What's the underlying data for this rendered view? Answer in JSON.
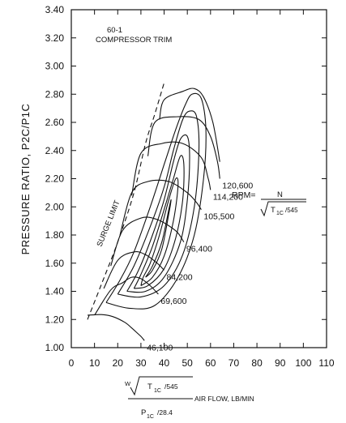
{
  "chart_data": {
    "type": "line",
    "title": "",
    "annotations": {
      "map_id": "60-1",
      "trim": "COMPRESSOR TRIM",
      "surge": "SURGE LIMIT"
    },
    "ylabel": "PRESSURE RATIO, P2C/P1C",
    "xlabel": {
      "numerator_w": "W",
      "numerator_t": "T",
      "numerator_t_sub": "1C",
      "numerator_t_div": "/545",
      "denominator_p": "P",
      "denominator_p_sub": "1C",
      "denominator_p_div": "/28.4",
      "suffix": "AIR FLOW, LB/MIN"
    },
    "rpm_formula": {
      "prefix": "RPM=",
      "numerator": "N",
      "den_t": "T",
      "den_sub": "1C",
      "den_div": "/545"
    },
    "xlim": [
      0,
      110
    ],
    "ylim": [
      1.0,
      3.4
    ],
    "x_ticks": [
      0,
      10,
      20,
      30,
      40,
      50,
      60,
      70,
      80,
      90,
      100,
      110
    ],
    "x_tick_labels": [
      "0",
      "10",
      "20",
      "30",
      "40",
      "50",
      "60",
      "70",
      "80",
      "90",
      "100",
      "110"
    ],
    "y_ticks": [
      1.0,
      1.2,
      1.4,
      1.6,
      1.8,
      2.0,
      2.2,
      2.4,
      2.6,
      2.8,
      3.0,
      3.2,
      3.4
    ],
    "y_tick_labels": [
      "1.00",
      "1.20",
      "1.40",
      "1.60",
      "1.80",
      "2.00",
      "2.20",
      "2.40",
      "2.60",
      "2.80",
      "3.00",
      "3.20",
      "3.40"
    ],
    "grid": false,
    "surge_line": [
      [
        7,
        1.2
      ],
      [
        13,
        1.45
      ],
      [
        20,
        1.75
      ],
      [
        27,
        2.1
      ],
      [
        32,
        2.45
      ],
      [
        36,
        2.66
      ],
      [
        40,
        2.88
      ]
    ],
    "speed_lines": [
      {
        "label": "46,100",
        "points": [
          [
            7,
            1.23
          ],
          [
            13,
            1.235
          ],
          [
            18,
            1.22
          ],
          [
            23,
            1.18
          ],
          [
            26,
            1.14
          ],
          [
            28,
            1.11
          ],
          [
            30,
            1.08
          ],
          [
            31.5,
            1.05
          ]
        ]
      },
      {
        "label": "69,600",
        "points": [
          [
            10,
            1.23
          ],
          [
            17,
            1.41
          ],
          [
            22,
            1.46
          ],
          [
            26,
            1.5
          ],
          [
            30,
            1.49
          ],
          [
            34,
            1.44
          ],
          [
            37.5,
            1.38
          ]
        ]
      },
      {
        "label": "84,200",
        "points": [
          [
            14,
            1.42
          ],
          [
            20,
            1.62
          ],
          [
            27,
            1.68
          ],
          [
            32,
            1.66
          ],
          [
            37,
            1.6
          ],
          [
            40,
            1.55
          ]
        ]
      },
      {
        "label": "96,400",
        "points": [
          [
            17,
            1.58
          ],
          [
            22,
            1.83
          ],
          [
            30,
            1.92
          ],
          [
            37,
            1.91
          ],
          [
            45,
            1.83
          ],
          [
            48.5,
            1.75
          ]
        ]
      },
      {
        "label": "105,500",
        "points": [
          [
            21,
            1.8
          ],
          [
            26,
            2.1
          ],
          [
            33,
            2.18
          ],
          [
            42,
            2.18
          ],
          [
            50,
            2.1
          ],
          [
            54,
            2.03
          ],
          [
            56,
            1.98
          ]
        ]
      },
      {
        "label": "114,200",
        "points": [
          [
            26,
            2.08
          ],
          [
            30,
            2.38
          ],
          [
            39,
            2.45
          ],
          [
            48,
            2.45
          ],
          [
            56,
            2.35
          ],
          [
            59,
            2.2
          ],
          [
            60,
            2.12
          ]
        ]
      },
      {
        "label": "120,600",
        "points": [
          [
            33,
            2.36
          ],
          [
            36,
            2.6
          ],
          [
            46,
            2.64
          ],
          [
            55,
            2.62
          ],
          [
            60,
            2.5
          ],
          [
            63,
            2.32
          ],
          [
            64,
            2.2
          ]
        ]
      },
      {
        "label": "",
        "points": [
          [
            38,
            2.62
          ],
          [
            40,
            2.76
          ],
          [
            48,
            2.82
          ],
          [
            53,
            2.84
          ],
          [
            57,
            2.78
          ],
          [
            61,
            2.6
          ],
          [
            64,
            2.32
          ]
        ]
      }
    ],
    "efficiency_islands": [
      {
        "points": [
          [
            32,
            1.5
          ],
          [
            35,
            1.58
          ],
          [
            39,
            1.75
          ],
          [
            42,
            1.98
          ],
          [
            43,
            2.05
          ],
          [
            42,
            1.95
          ],
          [
            39,
            1.7
          ],
          [
            35,
            1.55
          ],
          [
            32,
            1.5
          ]
        ]
      },
      {
        "points": [
          [
            30,
            1.44
          ],
          [
            35,
            1.5
          ],
          [
            40,
            1.65
          ],
          [
            44,
            1.9
          ],
          [
            46,
            2.15
          ],
          [
            45,
            2.2
          ],
          [
            42,
            2.05
          ],
          [
            38,
            1.8
          ],
          [
            34,
            1.6
          ],
          [
            31,
            1.5
          ],
          [
            30,
            1.44
          ]
        ]
      },
      {
        "points": [
          [
            27,
            1.42
          ],
          [
            33,
            1.44
          ],
          [
            40,
            1.56
          ],
          [
            45,
            1.78
          ],
          [
            48,
            2.05
          ],
          [
            48.5,
            2.3
          ],
          [
            47,
            2.36
          ],
          [
            44,
            2.2
          ],
          [
            40,
            1.98
          ],
          [
            35,
            1.72
          ],
          [
            30,
            1.52
          ],
          [
            27,
            1.42
          ]
        ]
      },
      {
        "points": [
          [
            24,
            1.4
          ],
          [
            32,
            1.4
          ],
          [
            40,
            1.5
          ],
          [
            47,
            1.75
          ],
          [
            50,
            2.05
          ],
          [
            51,
            2.35
          ],
          [
            50,
            2.5
          ],
          [
            47,
            2.48
          ],
          [
            44,
            2.32
          ],
          [
            40,
            2.05
          ],
          [
            35,
            1.8
          ],
          [
            29,
            1.55
          ],
          [
            24,
            1.4
          ]
        ]
      },
      {
        "points": [
          [
            20,
            1.38
          ],
          [
            30,
            1.36
          ],
          [
            40,
            1.44
          ],
          [
            48,
            1.66
          ],
          [
            53,
            2.0
          ],
          [
            55,
            2.4
          ],
          [
            54,
            2.64
          ],
          [
            51,
            2.68
          ],
          [
            48,
            2.62
          ],
          [
            44,
            2.4
          ],
          [
            40,
            2.14
          ],
          [
            34,
            1.86
          ],
          [
            27,
            1.58
          ],
          [
            20,
            1.38
          ]
        ]
      },
      {
        "points": [
          [
            15,
            1.32
          ],
          [
            25,
            1.28
          ],
          [
            36,
            1.3
          ],
          [
            46,
            1.5
          ],
          [
            53,
            1.8
          ],
          [
            57,
            2.2
          ],
          [
            58,
            2.55
          ],
          [
            56,
            2.77
          ],
          [
            52,
            2.8
          ],
          [
            49,
            2.72
          ],
          [
            45,
            2.55
          ],
          [
            40,
            2.3
          ],
          [
            34,
            2.0
          ],
          [
            27,
            1.68
          ],
          [
            21,
            1.48
          ],
          [
            15,
            1.32
          ]
        ]
      }
    ]
  }
}
